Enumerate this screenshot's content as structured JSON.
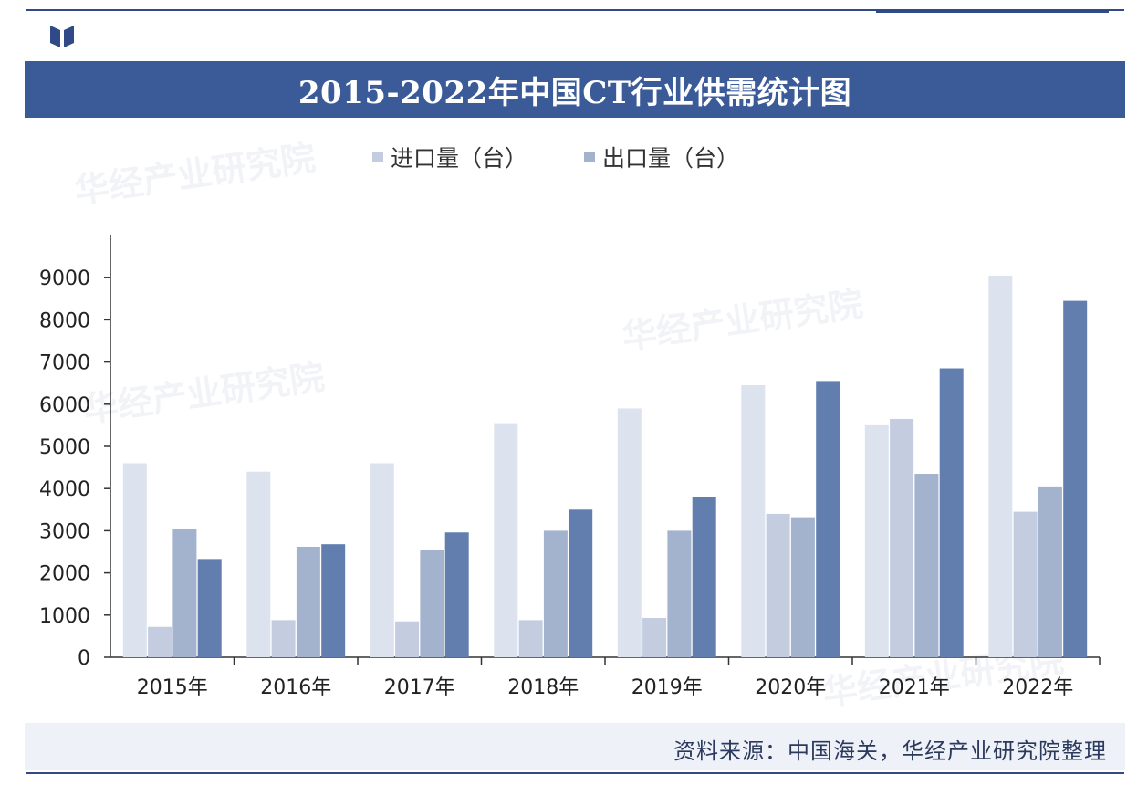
{
  "title": "2015-2022年中国CT行业供需统计图",
  "source": "资料来源：中国海关，华经产业研究院整理",
  "watermark": "华经产业研究院",
  "colors": {
    "brand": "#3b5a98",
    "series": [
      "#dde3ee",
      "#c3cddf",
      "#a3b2cd",
      "#627eaf"
    ]
  },
  "legend": [
    {
      "label": "进口量（台）",
      "color": "#c3cddf"
    },
    {
      "label": "出口量（台）",
      "color": "#a3b2cd"
    }
  ],
  "chart_data": {
    "type": "bar",
    "title": "2015-2022年中国CT行业供需统计图",
    "categories": [
      "2015年",
      "2016年",
      "2017年",
      "2018年",
      "2019年",
      "2020年",
      "2021年",
      "2022年"
    ],
    "ylim": [
      0,
      10000
    ],
    "yticks": [
      0,
      1000,
      2000,
      3000,
      4000,
      5000,
      6000,
      7000,
      8000,
      9000
    ],
    "grid": false,
    "legend_position": "top",
    "series": [
      {
        "values": [
          4600,
          4400,
          4600,
          5550,
          5900,
          6450,
          5500,
          9050
        ]
      },
      {
        "name": "进口量（台）",
        "values": [
          720,
          880,
          850,
          880,
          930,
          3400,
          5650,
          3450
        ]
      },
      {
        "name": "出口量（台）",
        "values": [
          3050,
          2620,
          2550,
          3000,
          3000,
          3320,
          4350,
          4050
        ]
      },
      {
        "values": [
          2330,
          2680,
          2960,
          3500,
          3800,
          6550,
          6850,
          8450
        ]
      }
    ]
  }
}
